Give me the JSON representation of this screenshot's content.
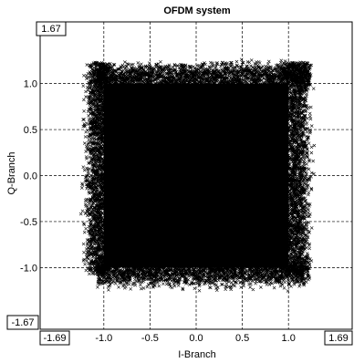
{
  "chart_data": {
    "type": "scatter",
    "title": "OFDM system",
    "xlabel": "I-Branch",
    "ylabel": "Q-Branch",
    "xlim": [
      -1.69,
      1.69
    ],
    "ylim": [
      -1.67,
      1.67
    ],
    "xticks": [
      "-1.0",
      "-0.5",
      "0.0",
      "0.5",
      "1.0"
    ],
    "yticks": [
      "1.0",
      "0.5",
      "0.0",
      "-0.5",
      "-1.0"
    ],
    "x_limit_labels": [
      "-1.69",
      "1.69"
    ],
    "y_limit_labels": [
      "-1.67",
      "1.67"
    ],
    "grid": true,
    "marker": "x",
    "marker_color": "#000000",
    "dense_region": {
      "x": [
        -1.0,
        1.0
      ],
      "y": [
        -1.0,
        1.0
      ]
    },
    "outer_extent": {
      "x": [
        -1.25,
        1.35
      ],
      "y": [
        -1.35,
        1.35
      ]
    }
  }
}
